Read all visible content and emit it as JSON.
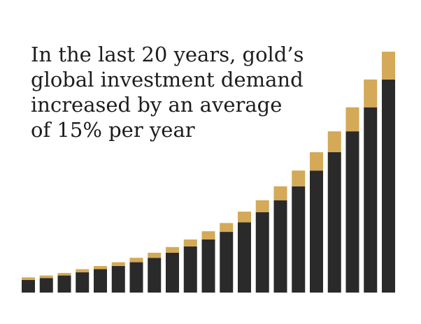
{
  "chart_data": {
    "type": "bar",
    "stacked": true,
    "headline_lines": [
      "In the last 20 years, gold’s",
      "global investment demand",
      "increased by an average",
      "of 15% per year"
    ],
    "categories": [
      "",
      "",
      "",
      "",
      "",
      "",
      "",
      "",
      "",
      "",
      "",
      "",
      "",
      "",
      "",
      "",
      "",
      "",
      "",
      "",
      ""
    ],
    "series": [
      {
        "color": "#2b2a2a",
        "values": [
          20,
          23,
          27,
          32,
          37,
          42,
          48,
          55,
          63,
          73,
          84,
          96,
          111,
          127,
          146,
          168,
          193,
          222,
          255,
          293,
          337
        ]
      },
      {
        "color": "#d4a957",
        "values": [
          4,
          4,
          4,
          5,
          5,
          6,
          7,
          8,
          9,
          11,
          13,
          14,
          17,
          19,
          22,
          25,
          29,
          33,
          38,
          44,
          44
        ]
      }
    ],
    "ylim": [
      0,
      381
    ],
    "grid": false,
    "legend": "none",
    "axes_visible": false
  }
}
